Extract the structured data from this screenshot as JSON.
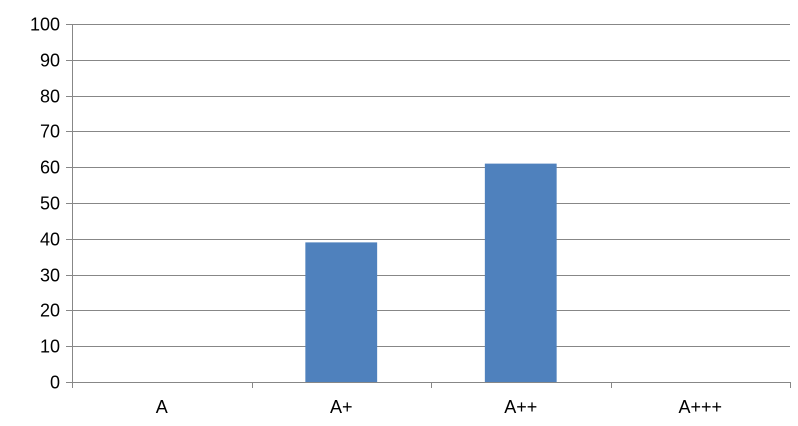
{
  "chart_data": {
    "type": "bar",
    "title": "",
    "xlabel": "",
    "ylabel": "",
    "categories": [
      "A",
      "A+",
      "A++",
      "A+++"
    ],
    "values": [
      0,
      39,
      61,
      0
    ],
    "ylim": [
      0,
      100
    ],
    "yticks": [
      "0",
      "10",
      "20",
      "30",
      "40",
      "50",
      "60",
      "70",
      "80",
      "90",
      "100"
    ],
    "grid": true,
    "legend": "none",
    "colors": {
      "bar": "#4F81BD",
      "grid": "#878787",
      "text": "#000000"
    }
  }
}
